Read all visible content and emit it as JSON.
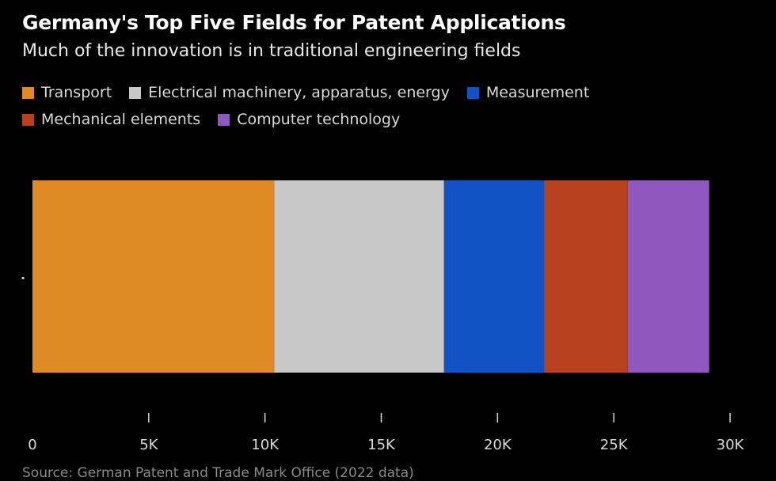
{
  "chart_data": {
    "type": "bar",
    "orientation": "horizontal",
    "stacked": true,
    "title": "Germany's Top Five Fields for Patent Applications",
    "subtitle": "Much of the innovation is in traditional engineering fields",
    "categories": [
      ""
    ],
    "series": [
      {
        "name": "Transport",
        "values": [
          10400
        ],
        "color": "#e08a25"
      },
      {
        "name": "Electrical machinery, apparatus, energy",
        "values": [
          7300
        ],
        "color": "#c8c8c8"
      },
      {
        "name": "Measurement",
        "values": [
          4300
        ],
        "color": "#1152c4"
      },
      {
        "name": "Mechanical elements",
        "values": [
          3600
        ],
        "color": "#b5421c"
      },
      {
        "name": "Computer technology",
        "values": [
          3500
        ],
        "color": "#8f57bf"
      }
    ],
    "xlim": [
      0,
      30000
    ],
    "xticks": [
      {
        "value": 0,
        "label": "0"
      },
      {
        "value": 5000,
        "label": "5K"
      },
      {
        "value": 10000,
        "label": "10K"
      },
      {
        "value": 15000,
        "label": "15K"
      },
      {
        "value": 20000,
        "label": "20K"
      },
      {
        "value": 25000,
        "label": "25K"
      },
      {
        "value": 30000,
        "label": "30K"
      }
    ],
    "legend_position": "top-left",
    "grid": false,
    "source": "Source: German Patent and Trade Mark Office (2022 data)"
  }
}
